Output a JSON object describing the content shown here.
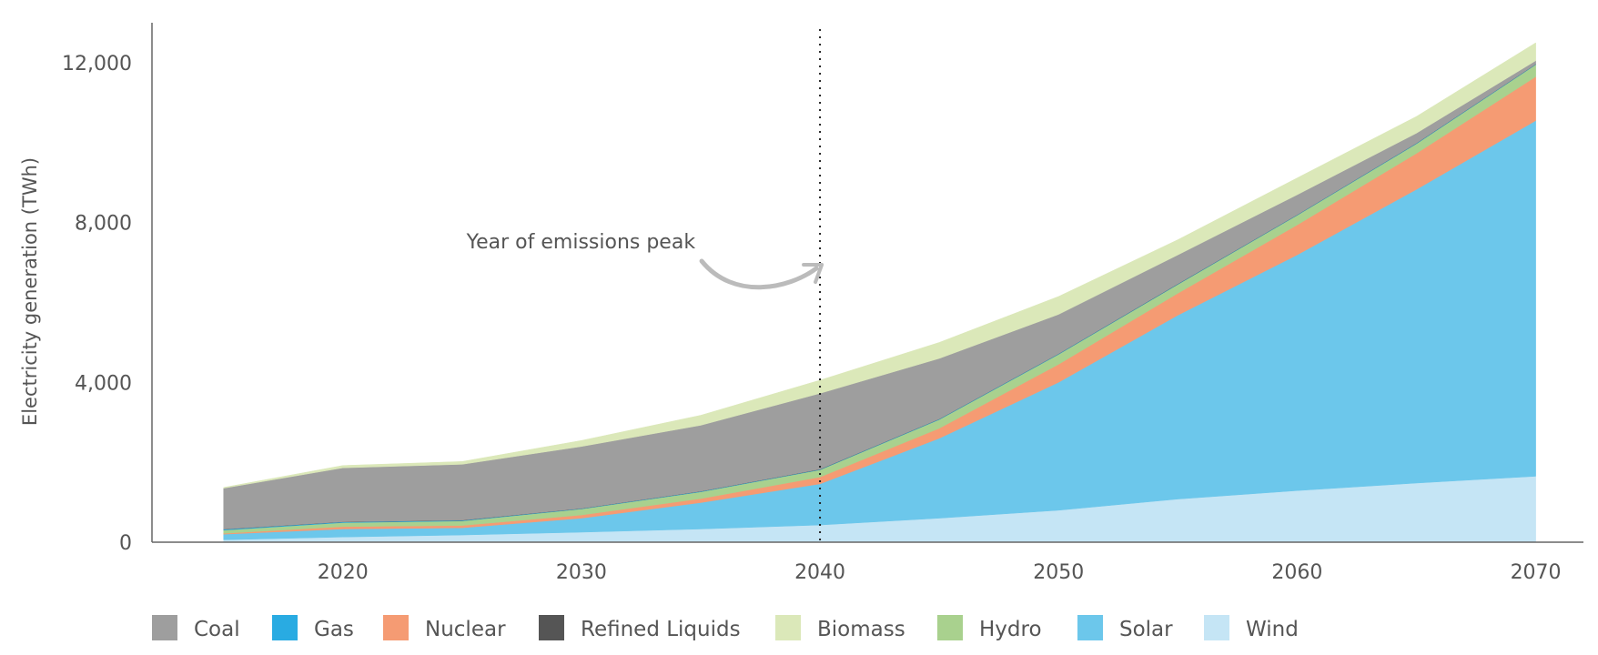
{
  "chart_data": {
    "type": "area",
    "stacked": true,
    "title": "",
    "xlabel": "",
    "ylabel": "Electricity generation (TWh)",
    "xlim": [
      2012,
      2072
    ],
    "ylim": [
      0,
      13000
    ],
    "x_ticks": [
      2020,
      2030,
      2040,
      2050,
      2060,
      2070
    ],
    "x_tick_labels": [
      "2020",
      "2030",
      "2040",
      "2050",
      "2060",
      "2070"
    ],
    "y_ticks": [
      0,
      4000,
      8000,
      12000
    ],
    "y_tick_labels": [
      "0",
      "4,000",
      "8,000",
      "12,000"
    ],
    "grid": false,
    "legend_position": "bottom",
    "x": [
      2015,
      2020,
      2025,
      2030,
      2035,
      2040,
      2045,
      2050,
      2055,
      2060,
      2065,
      2070
    ],
    "series": [
      {
        "name": "Wind",
        "color": "#c5e5f5",
        "values": [
          60,
          130,
          180,
          250,
          330,
          430,
          600,
          800,
          1080,
          1290,
          1480,
          1650
        ]
      },
      {
        "name": "Solar",
        "color": "#6cc7eb",
        "values": [
          140,
          200,
          180,
          350,
          660,
          1030,
          2000,
          3200,
          4600,
          5900,
          7350,
          8900
        ]
      },
      {
        "name": "Nuclear",
        "color": "#f59b73",
        "values": [
          20,
          60,
          60,
          80,
          100,
          170,
          250,
          450,
          550,
          750,
          900,
          1100
        ]
      },
      {
        "name": "Hydro",
        "color": "#a9d18e",
        "values": [
          80,
          100,
          110,
          150,
          170,
          180,
          220,
          250,
          220,
          240,
          240,
          300
        ]
      },
      {
        "name": "Gas",
        "color": "#29abe2",
        "values": [
          20,
          15,
          15,
          10,
          10,
          10,
          10,
          10,
          10,
          10,
          10,
          10
        ]
      },
      {
        "name": "Refined Liquids",
        "color": "#555555",
        "values": [
          5,
          5,
          5,
          5,
          5,
          5,
          5,
          5,
          5,
          5,
          5,
          5
        ]
      },
      {
        "name": "Coal",
        "color": "#9e9e9e",
        "values": [
          1025,
          1350,
          1400,
          1550,
          1650,
          1900,
          1515,
          985,
          725,
          500,
          250,
          85
        ]
      },
      {
        "name": "Biomass",
        "color": "#dbe8b9",
        "values": [
          20,
          60,
          70,
          150,
          250,
          330,
          400,
          450,
          380,
          420,
          420,
          450
        ]
      }
    ],
    "legend_order": [
      "Coal",
      "Gas",
      "Nuclear",
      "Refined Liquids",
      "Biomass",
      "Hydro",
      "Solar",
      "Wind"
    ],
    "vline": {
      "x": 2040,
      "style": "dotted"
    },
    "annotation": {
      "text": "Year of emissions peak",
      "target_x": 2040
    }
  }
}
